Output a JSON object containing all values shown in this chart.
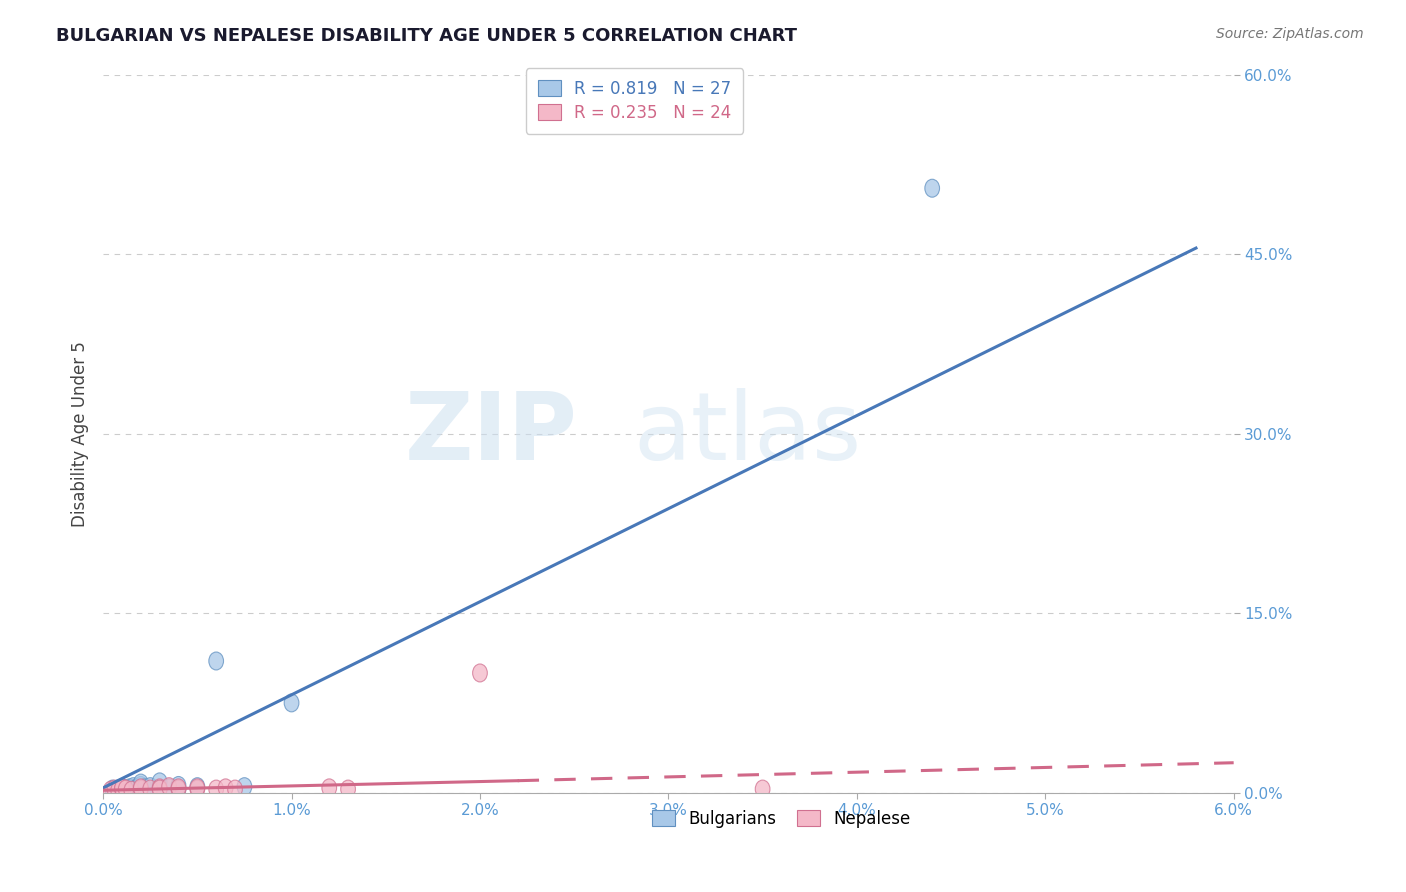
{
  "title": "BULGARIAN VS NEPALESE DISABILITY AGE UNDER 5 CORRELATION CHART",
  "source": "Source: ZipAtlas.com",
  "ylabel": "Disability Age Under 5",
  "xlim": [
    0.0,
    0.06
  ],
  "ylim": [
    0.0,
    0.6
  ],
  "xticks": [
    0.0,
    0.01,
    0.02,
    0.03,
    0.04,
    0.05,
    0.06
  ],
  "xticklabels": [
    "0.0%",
    "1.0%",
    "2.0%",
    "3.0%",
    "4.0%",
    "5.0%",
    "6.0%"
  ],
  "yticks": [
    0.0,
    0.15,
    0.3,
    0.45,
    0.6
  ],
  "yticklabels": [
    "0.0%",
    "15.0%",
    "30.0%",
    "45.0%",
    "60.0%"
  ],
  "grid_color": "#cccccc",
  "background_color": "#ffffff",
  "blue_color": "#a8c8e8",
  "pink_color": "#f4b8c8",
  "blue_edge_color": "#6090c0",
  "pink_edge_color": "#d07090",
  "blue_line_color": "#4878b8",
  "pink_line_color": "#d06888",
  "legend_R_blue": "0.819",
  "legend_N_blue": "27",
  "legend_R_pink": "0.235",
  "legend_N_pink": "24",
  "watermark_zip": "ZIP",
  "watermark_atlas": "atlas",
  "blue_line_x0": 0.0,
  "blue_line_y0": 0.004,
  "blue_line_x1": 0.058,
  "blue_line_y1": 0.455,
  "pink_line_solid_x0": 0.0,
  "pink_line_solid_y0": 0.002,
  "pink_line_solid_x1": 0.022,
  "pink_line_solid_y1": 0.01,
  "pink_line_dash_x0": 0.022,
  "pink_line_dash_y0": 0.01,
  "pink_line_dash_x1": 0.06,
  "pink_line_dash_y1": 0.025,
  "bulgarians_x": [
    0.0005,
    0.0005,
    0.0007,
    0.0008,
    0.001,
    0.001,
    0.001,
    0.0012,
    0.0014,
    0.0015,
    0.0016,
    0.0018,
    0.002,
    0.002,
    0.002,
    0.0022,
    0.0025,
    0.003,
    0.003,
    0.0035,
    0.004,
    0.004,
    0.005,
    0.006,
    0.0075,
    0.01,
    0.044
  ],
  "bulgarians_y": [
    0.002,
    0.003,
    0.002,
    0.003,
    0.002,
    0.003,
    0.004,
    0.003,
    0.004,
    0.003,
    0.005,
    0.004,
    0.003,
    0.006,
    0.008,
    0.004,
    0.005,
    0.003,
    0.009,
    0.004,
    0.003,
    0.006,
    0.005,
    0.11,
    0.005,
    0.075,
    0.505
  ],
  "nepalese_x": [
    0.0004,
    0.0006,
    0.0008,
    0.001,
    0.001,
    0.0012,
    0.0015,
    0.002,
    0.002,
    0.0025,
    0.003,
    0.003,
    0.0035,
    0.004,
    0.004,
    0.005,
    0.005,
    0.006,
    0.0065,
    0.007,
    0.012,
    0.013,
    0.02,
    0.035
  ],
  "nepalese_y": [
    0.002,
    0.003,
    0.002,
    0.003,
    0.004,
    0.003,
    0.002,
    0.003,
    0.004,
    0.003,
    0.004,
    0.003,
    0.005,
    0.003,
    0.004,
    0.003,
    0.004,
    0.003,
    0.004,
    0.003,
    0.004,
    0.003,
    0.1,
    0.003
  ]
}
